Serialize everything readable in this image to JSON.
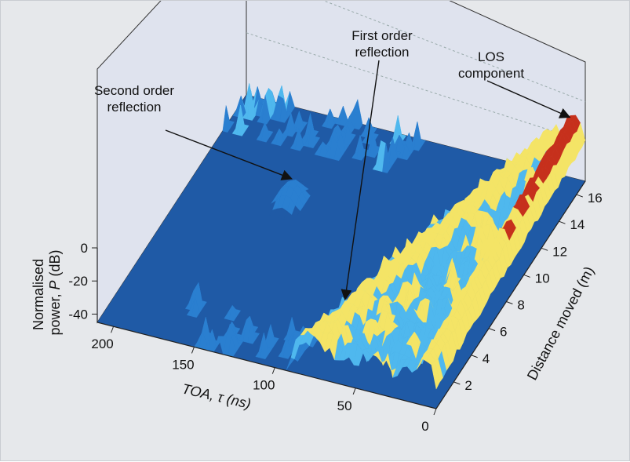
{
  "chart_data": {
    "type": "surface",
    "title": "",
    "xlabel": "TOA, τ (ns)",
    "ylabel": "Distance moved (m)",
    "zlabel": "Normalised power, P (dB)",
    "x_ticks": [
      "200",
      "150",
      "100",
      "50",
      "0"
    ],
    "y_ticks": [
      "2",
      "4",
      "6",
      "8",
      "10",
      "12",
      "14",
      "16"
    ],
    "z_ticks": [
      "0",
      "-20",
      "-40"
    ],
    "xlim": [
      0,
      210
    ],
    "ylim": [
      0,
      17
    ],
    "zlim": [
      -45,
      0
    ],
    "background_level_db": -45,
    "features": [
      {
        "name": "LOS component",
        "toa_ns": 7,
        "distance_m": [
          1,
          16.5
        ],
        "peak_db": 0
      },
      {
        "name": "First order reflection",
        "toa_ns_start": 78,
        "toa_ns_end": 22,
        "distance_m": [
          1,
          16
        ],
        "peak_db": -18
      },
      {
        "name": "Second order reflection",
        "toa_ns": 150,
        "distance_m": 11,
        "peak_db": -35
      }
    ],
    "annotations": [
      {
        "text": [
          "Second order",
          "reflection"
        ],
        "points_to": "Second order reflection"
      },
      {
        "text": [
          "First order",
          "reflection"
        ],
        "points_to": "First order reflection"
      },
      {
        "text": [
          "LOS",
          "component"
        ],
        "points_to": "LOS component"
      }
    ],
    "colors": {
      "background": "#e6e8eb",
      "floor": "#1f5aa6",
      "low": "#2a7fd0",
      "mid": "#4fb8ee",
      "high": "#f4e466",
      "peak": "#c6301c",
      "box_face": "#dfe3ee"
    }
  }
}
